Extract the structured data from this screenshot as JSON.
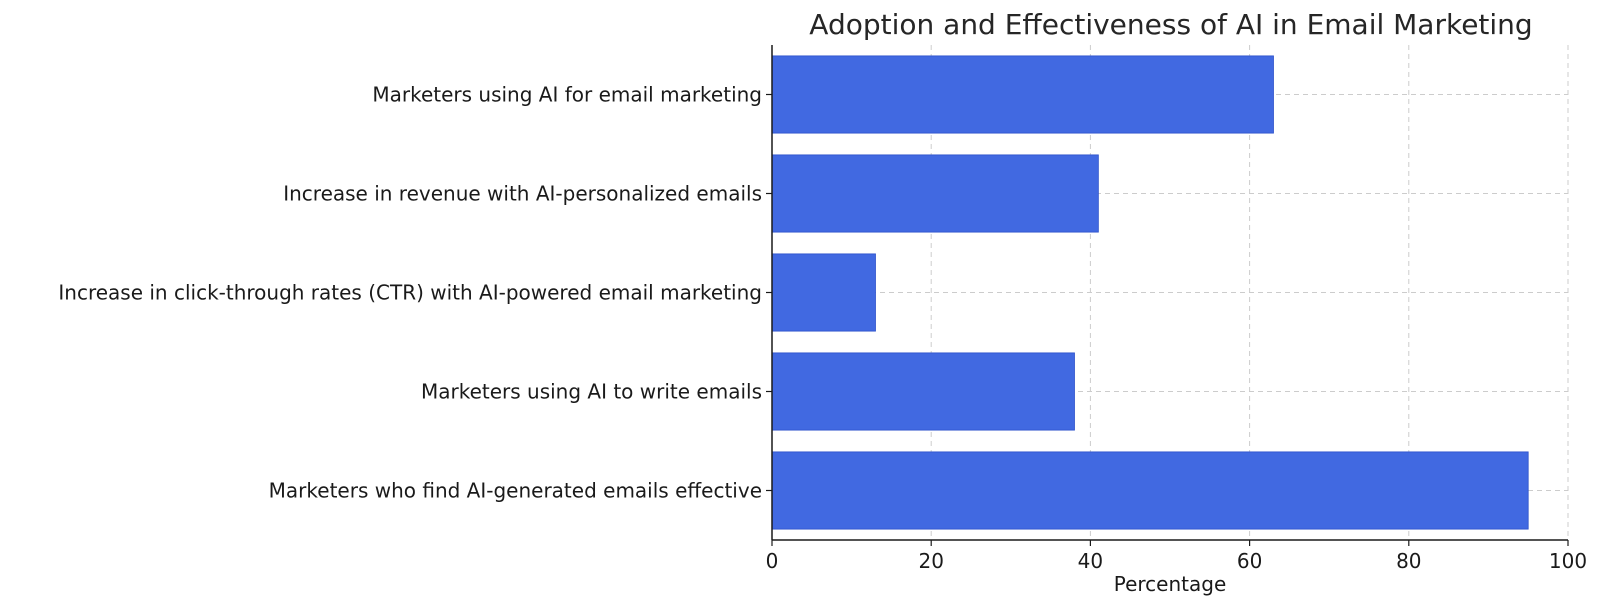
{
  "chart_data": {
    "type": "bar",
    "orientation": "horizontal",
    "title": "Adoption and Effectiveness of AI in Email Marketing",
    "xlabel": "Percentage",
    "ylabel": "",
    "xlim": [
      0,
      100
    ],
    "xticks": [
      0,
      20,
      40,
      60,
      80,
      100
    ],
    "grid": true,
    "categories": [
      "Marketers using AI for email marketing",
      "Increase in revenue with AI-personalized emails",
      "Increase in click-through rates (CTR) with AI-powered email marketing",
      "Marketers using AI to write emails",
      "Marketers who find AI-generated emails effective"
    ],
    "values": [
      63,
      41,
      13,
      38,
      95
    ],
    "bar_color": "#4169e1"
  }
}
